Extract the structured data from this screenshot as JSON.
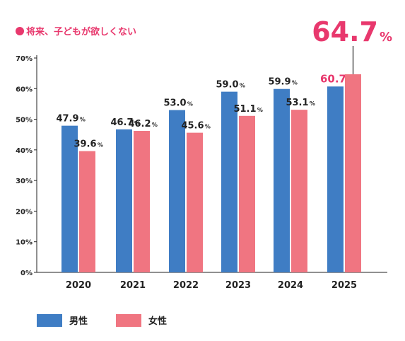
{
  "title": "将来、子どもが欲しくない",
  "legend": {
    "male": "男性",
    "female": "女性"
  },
  "colors": {
    "male": "#3f7dc4",
    "female": "#f07581",
    "accent": "#e8386d",
    "text": "#222222"
  },
  "chart_data": {
    "type": "bar",
    "categories": [
      "2020",
      "2021",
      "2022",
      "2023",
      "2024",
      "2025"
    ],
    "series": [
      {
        "name": "男性",
        "values": [
          47.9,
          46.7,
          53.0,
          59.0,
          59.9,
          60.7
        ]
      },
      {
        "name": "女性",
        "values": [
          39.6,
          46.2,
          45.6,
          51.1,
          53.1,
          64.7
        ]
      }
    ],
    "value_labels": {
      "男性": [
        "47.9",
        "46.7",
        "53.0",
        "59.0",
        "59.9",
        "60.7"
      ],
      "女性": [
        "39.6",
        "46.2",
        "45.6",
        "51.1",
        "53.1",
        "64.7"
      ]
    },
    "unit": "%",
    "yticks": [
      "0%",
      "10%",
      "20%",
      "30%",
      "40%",
      "50%",
      "60%",
      "70%"
    ],
    "ylim": [
      0,
      70
    ],
    "grid": false,
    "legend_position": "bottom-left"
  }
}
